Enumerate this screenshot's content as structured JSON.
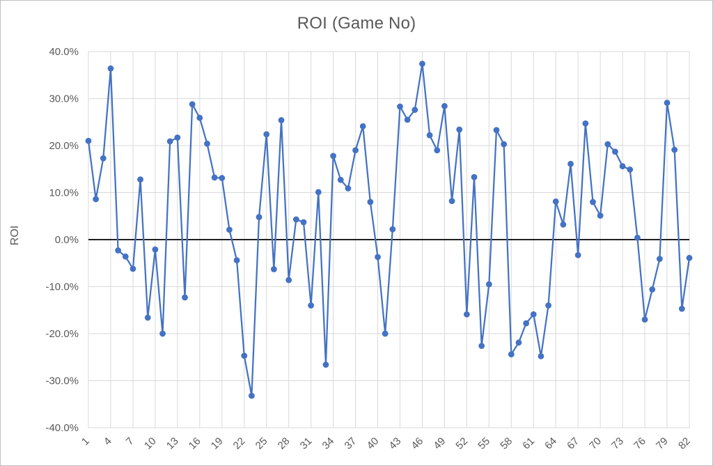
{
  "chart": {
    "title": "ROI (Game No)",
    "y_axis_title": "ROI"
  },
  "chart_data": {
    "type": "line",
    "title": "ROI (Game No)",
    "ylabel": "ROI",
    "x": [
      1,
      2,
      3,
      4,
      5,
      6,
      7,
      8,
      9,
      10,
      11,
      12,
      13,
      14,
      15,
      16,
      17,
      18,
      19,
      20,
      21,
      22,
      23,
      24,
      25,
      26,
      27,
      28,
      29,
      30,
      31,
      32,
      33,
      34,
      35,
      36,
      37,
      38,
      39,
      40,
      41,
      42,
      43,
      44,
      45,
      46,
      47,
      48,
      49,
      50,
      51,
      52,
      53,
      54,
      55,
      56,
      57,
      58,
      59,
      60,
      61,
      62,
      63,
      64,
      65,
      66,
      67,
      68,
      69,
      70,
      71,
      72,
      73,
      74,
      75,
      76,
      77,
      78,
      79,
      80,
      81,
      82
    ],
    "values_pct": [
      21.0,
      8.6,
      17.3,
      36.4,
      -2.3,
      -3.6,
      -6.2,
      12.8,
      -16.6,
      -2.1,
      -20.0,
      20.9,
      21.7,
      -12.3,
      28.8,
      25.9,
      20.4,
      13.2,
      13.1,
      2.1,
      -4.4,
      -24.7,
      -33.2,
      4.8,
      22.4,
      -6.3,
      25.4,
      -8.6,
      4.3,
      3.7,
      -14.0,
      10.1,
      -26.6,
      17.8,
      12.7,
      10.9,
      19.0,
      24.1,
      8.0,
      -3.7,
      -20.0,
      2.2,
      28.3,
      25.5,
      27.6,
      37.4,
      22.2,
      19.0,
      28.4,
      8.2,
      23.4,
      -15.9,
      13.3,
      -22.6,
      -9.5,
      23.3,
      20.3,
      -24.4,
      -21.9,
      -17.8,
      -15.9,
      -24.8,
      -14.0,
      8.1,
      3.2,
      16.1,
      -3.3,
      24.7,
      8.0,
      5.1,
      20.3,
      18.7,
      15.6,
      14.9,
      0.4,
      -17.0,
      -10.6,
      -4.1,
      29.1,
      19.1,
      -14.7,
      -3.9
    ],
    "x_tick_labels": [
      "1",
      "4",
      "7",
      "10",
      "13",
      "16",
      "19",
      "22",
      "25",
      "28",
      "31",
      "34",
      "37",
      "40",
      "43",
      "46",
      "49",
      "52",
      "55",
      "58",
      "61",
      "64",
      "67",
      "70",
      "73",
      "76",
      "79",
      "82"
    ],
    "y_tick_labels": [
      "40.0%",
      "30.0%",
      "20.0%",
      "10.0%",
      "0.0%",
      "-10.0%",
      "-20.0%",
      "-30.0%",
      "-40.0%"
    ],
    "ylim_pct": [
      -40,
      40
    ],
    "y_tick_step_pct": 10,
    "x_tick_step": 3,
    "grid": true,
    "legend": "none",
    "line_color": "#4472C4",
    "marker": "circle",
    "gridline_color": "#D9D9D9",
    "zero_line_color": "#000000",
    "tick_label_color": "#595959",
    "title_color": "#595959",
    "chart_border_color": "#BFBFBF"
  }
}
